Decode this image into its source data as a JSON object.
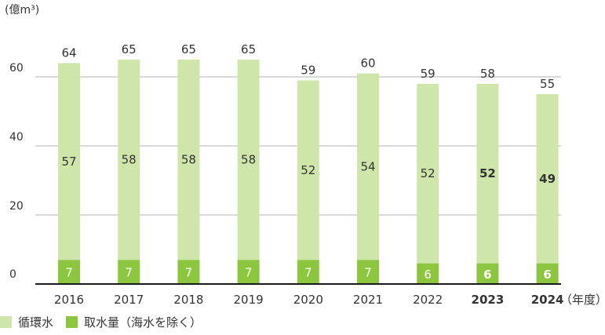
{
  "chart_data": {
    "type": "bar",
    "stacked": true,
    "unit_label": "(億m³)",
    "x_suffix": "（年度）",
    "categories": [
      "2016",
      "2017",
      "2018",
      "2019",
      "2020",
      "2021",
      "2022",
      "2023",
      "2024"
    ],
    "bold_categories": [
      "2023",
      "2024"
    ],
    "series": [
      {
        "name": "取水量（海水を除く）",
        "values": [
          7,
          7,
          7,
          7,
          7,
          7,
          6,
          6,
          6
        ],
        "color": "#8cc63f"
      },
      {
        "name": "循環水",
        "values": [
          57,
          58,
          58,
          58,
          52,
          54,
          52,
          52,
          49
        ],
        "color": "#cfe6aa"
      }
    ],
    "totals": [
      64,
      65,
      65,
      65,
      59,
      60,
      59,
      58,
      55
    ],
    "yticks": [
      0,
      20,
      40,
      60
    ],
    "ylim": [
      0,
      64
    ],
    "grid": true
  }
}
